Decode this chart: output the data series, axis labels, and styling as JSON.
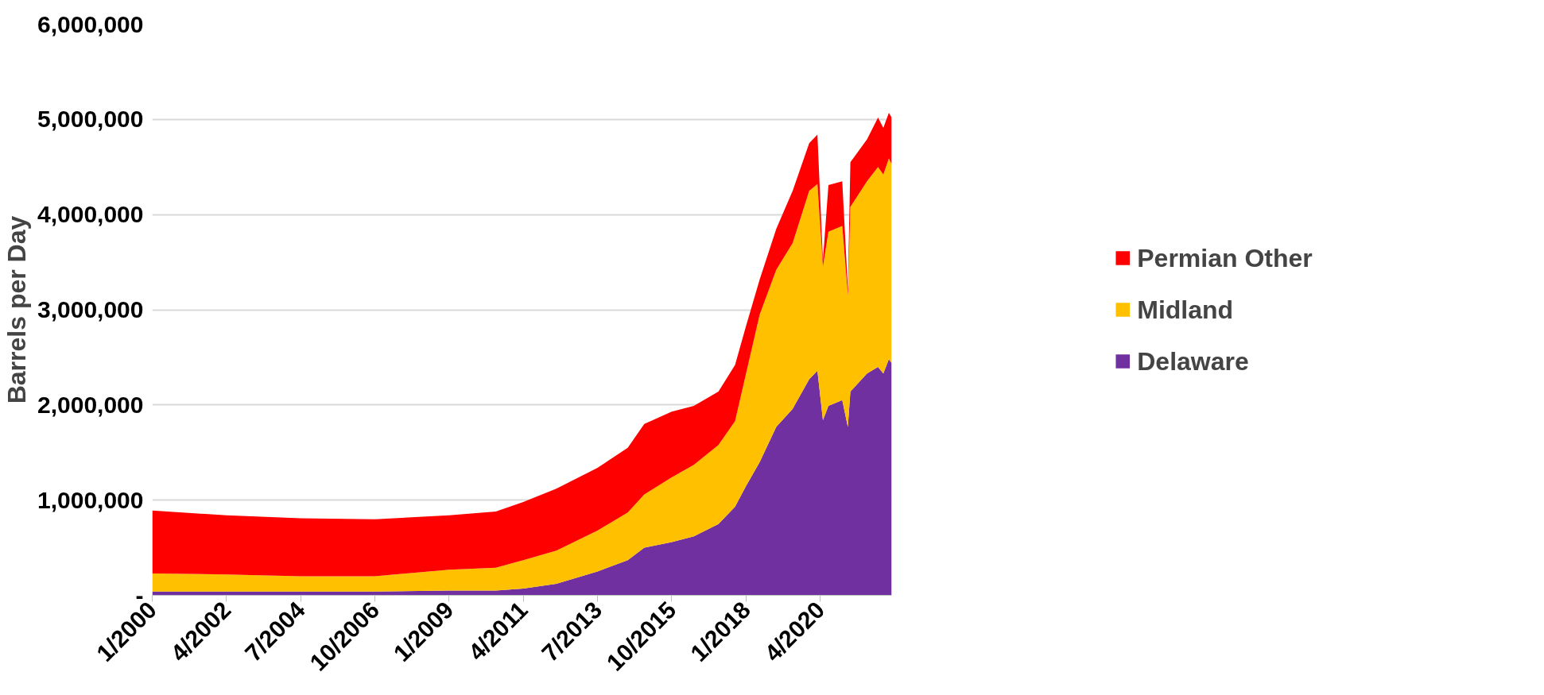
{
  "chart_data": {
    "type": "area",
    "stacked": true,
    "ylabel": "Barrels per Day",
    "x": [
      "2000-01",
      "2002-04",
      "2004-07",
      "2006-10",
      "2009-01",
      "2010-06",
      "2011-04",
      "2012-04",
      "2013-07",
      "2014-06",
      "2014-12",
      "2015-10",
      "2016-06",
      "2017-03",
      "2017-09",
      "2018-01",
      "2018-06",
      "2018-12",
      "2019-06",
      "2019-12",
      "2020-03",
      "2020-05",
      "2020-07",
      "2020-12",
      "2021-02",
      "2021-03",
      "2021-09",
      "2022-01",
      "2022-03",
      "2022-05",
      "2022-06"
    ],
    "series": [
      {
        "name": "Delaware",
        "color": "#7030a0",
        "values": [
          40000,
          40000,
          40000,
          40000,
          50000,
          50000,
          70000,
          120000,
          250000,
          370000,
          500000,
          560000,
          620000,
          750000,
          930000,
          1150000,
          1400000,
          1770000,
          1960000,
          2270000,
          2360000,
          1840000,
          1990000,
          2050000,
          1770000,
          2140000,
          2330000,
          2400000,
          2330000,
          2480000,
          2440000
        ]
      },
      {
        "name": "Midland",
        "color": "#ffc000",
        "values": [
          190000,
          180000,
          160000,
          160000,
          220000,
          240000,
          300000,
          350000,
          430000,
          500000,
          560000,
          680000,
          750000,
          830000,
          900000,
          1180000,
          1550000,
          1650000,
          1740000,
          1980000,
          1960000,
          1610000,
          1830000,
          1830000,
          1380000,
          1940000,
          2020000,
          2100000,
          2090000,
          2110000,
          2090000
        ]
      },
      {
        "name": "Permian Other",
        "color": "#ff0000",
        "values": [
          660000,
          620000,
          610000,
          600000,
          570000,
          590000,
          610000,
          650000,
          660000,
          680000,
          740000,
          690000,
          620000,
          560000,
          590000,
          500000,
          370000,
          430000,
          550000,
          500000,
          520000,
          70000,
          490000,
          470000,
          70000,
          470000,
          440000,
          520000,
          490000,
          480000,
          490000
        ]
      }
    ],
    "xlim": [
      "2000-01",
      "2022-06"
    ],
    "xticks": [
      {
        "value": "2000-01",
        "label": "1/2000"
      },
      {
        "value": "2002-04",
        "label": "4/2002"
      },
      {
        "value": "2004-07",
        "label": "7/2004"
      },
      {
        "value": "2006-10",
        "label": "10/2006"
      },
      {
        "value": "2009-01",
        "label": "1/2009"
      },
      {
        "value": "2011-04",
        "label": "4/2011"
      },
      {
        "value": "2013-07",
        "label": "7/2013"
      },
      {
        "value": "2015-10",
        "label": "10/2015"
      },
      {
        "value": "2018-01",
        "label": "1/2018"
      },
      {
        "value": "2020-04",
        "label": "4/2020"
      }
    ],
    "ylim": [
      0,
      6000000
    ],
    "yticks": [
      {
        "value": 0,
        "label": "-"
      },
      {
        "value": 1000000,
        "label": "1,000,000"
      },
      {
        "value": 2000000,
        "label": "2,000,000"
      },
      {
        "value": 3000000,
        "label": "3,000,000"
      },
      {
        "value": 4000000,
        "label": "4,000,000"
      },
      {
        "value": 5000000,
        "label": "5,000,000"
      },
      {
        "value": 6000000,
        "label": "6,000,000"
      }
    ],
    "grid": "y",
    "legend": "right"
  }
}
